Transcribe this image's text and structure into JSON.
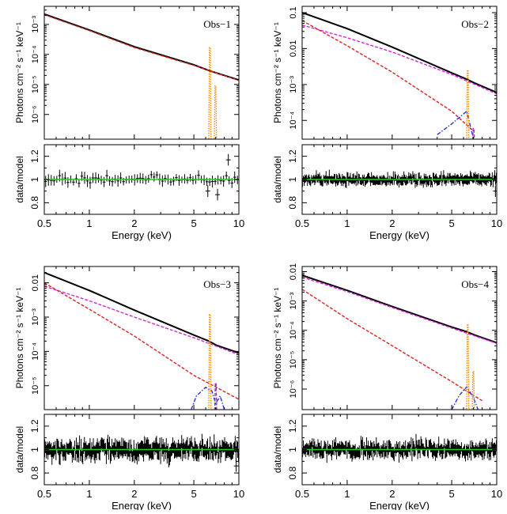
{
  "chart_data": [
    {
      "type": "line",
      "title": "Obs−1",
      "xlabel": "Energy (keV)",
      "ylabel_top": "Photons cm⁻² s⁻¹ keV⁻¹",
      "ylabel_bottom": "data/model",
      "xscale": "log",
      "xlim": [
        0.5,
        10
      ],
      "ylim_top": [
        1.5e-07,
        0.004
      ],
      "yscale_top": "log",
      "ylim_bottom": [
        0.7,
        1.3
      ],
      "xticks": [
        "0.5",
        "1",
        "2",
        "5",
        "10"
      ],
      "yticks_top": [
        "10⁻⁷",
        "10⁻⁶",
        "10⁻⁵",
        "10⁻⁴",
        "10⁻³"
      ],
      "yticks_bottom": [
        "0.8",
        "1",
        "1.2"
      ],
      "series": [
        {
          "role": "total",
          "color": "#000000",
          "style": "solid",
          "points": [
            [
              0.5,
              0.0022
            ],
            [
              1,
              0.00065
            ],
            [
              2,
              0.00018
            ],
            [
              5,
              4.5e-05
            ],
            [
              6.3,
              2.9e-05
            ],
            [
              7.1,
              2.4e-05
            ],
            [
              10,
              1.4e-05
            ]
          ]
        },
        {
          "role": "continuum",
          "color": "#dd2222",
          "style": "dashed",
          "points": [
            [
              0.5,
              0.0021
            ],
            [
              1,
              0.00062
            ],
            [
              2,
              0.00017
            ],
            [
              5,
              4.3e-05
            ],
            [
              10,
              1.35e-05
            ]
          ]
        },
        {
          "role": "line",
          "color": "#ee8800",
          "style": "dotted",
          "center": 6.4,
          "peak": 0.00017
        },
        {
          "role": "line",
          "color": "#ee8800",
          "style": "dotted",
          "center": 6.97,
          "peak": 9e-06
        }
      ],
      "ratio_scatter": 0.04,
      "ratio_points": 70,
      "outliers": [
        [
          8.5,
          1.17
        ],
        [
          6.2,
          0.9
        ],
        [
          7.2,
          0.87
        ]
      ]
    },
    {
      "type": "line",
      "title": "Obs−2",
      "xlabel": "Energy (keV)",
      "ylabel_top": "Photons cm⁻² s⁻¹ keV⁻¹",
      "ylabel_bottom": "data/model",
      "xscale": "log",
      "xlim": [
        0.5,
        10
      ],
      "ylim_top": [
        3e-05,
        0.15
      ],
      "yscale_top": "log",
      "ylim_bottom": [
        0.7,
        1.3
      ],
      "xticks": [
        "0.5",
        "1",
        "2",
        "5",
        "10"
      ],
      "yticks_top": [
        "10⁻⁴",
        "10⁻³",
        "0.01",
        "0.1"
      ],
      "yticks_bottom": [
        "0.8",
        "1",
        "1.2"
      ],
      "series": [
        {
          "role": "total",
          "color": "#000000",
          "style": "solid",
          "points": [
            [
              0.5,
              0.1
            ],
            [
              1,
              0.036
            ],
            [
              2,
              0.011
            ],
            [
              5,
              0.0021
            ],
            [
              6.3,
              0.0014
            ],
            [
              7.1,
              0.0011
            ],
            [
              10,
              0.0006
            ]
          ]
        },
        {
          "role": "power-law",
          "color": "#dd22dd",
          "style": "dashed",
          "points": [
            [
              0.5,
              0.045
            ],
            [
              1,
              0.02
            ],
            [
              2,
              0.008
            ],
            [
              5,
              0.0019
            ],
            [
              10,
              0.00055
            ]
          ]
        },
        {
          "role": "soft",
          "color": "#dd2222",
          "style": "dashed",
          "points": [
            [
              0.5,
              0.06
            ],
            [
              1,
              0.012
            ],
            [
              2,
              0.0022
            ],
            [
              5,
              0.00018
            ],
            [
              7,
              5e-05
            ]
          ]
        },
        {
          "role": "reflection",
          "color": "#2233dd",
          "style": "dashdot",
          "points": [
            [
              4.0,
              4e-05
            ],
            [
              5,
              8e-05
            ],
            [
              6.3,
              0.00018
            ],
            [
              7.0,
              3e-05
            ]
          ]
        },
        {
          "role": "line",
          "color": "#ee8800",
          "style": "dotted",
          "center": 6.4,
          "peak": 0.0025
        },
        {
          "role": "line",
          "color": "#9933cc",
          "style": "dashed",
          "center": 7.0,
          "peak": 6e-05
        }
      ],
      "ratio_scatter": 0.035,
      "ratio_points": 240,
      "outliers": [
        [
          9.8,
          0.9
        ]
      ]
    },
    {
      "type": "line",
      "title": "Obs−3",
      "xlabel": "Energy (keV)",
      "ylabel_top": "Photons cm⁻² s⁻¹ keV⁻¹",
      "ylabel_bottom": "data/model",
      "xscale": "log",
      "xlim": [
        0.5,
        10
      ],
      "ylim_top": [
        2e-06,
        0.03
      ],
      "yscale_top": "log",
      "ylim_bottom": [
        0.7,
        1.3
      ],
      "xticks": [
        "0.5",
        "1",
        "2",
        "5",
        "10"
      ],
      "yticks_top": [
        "10⁻⁵",
        "10⁻⁴",
        "10⁻³",
        "0.01"
      ],
      "yticks_bottom": [
        "0.8",
        "1",
        "1.2"
      ],
      "series": [
        {
          "role": "total",
          "color": "#000000",
          "style": "solid",
          "points": [
            [
              0.5,
              0.02
            ],
            [
              1,
              0.006
            ],
            [
              2,
              0.0016
            ],
            [
              5,
              0.0003
            ],
            [
              6.3,
              0.0002
            ],
            [
              7.1,
              0.00015
            ],
            [
              10,
              9e-05
            ]
          ]
        },
        {
          "role": "power-law",
          "color": "#dd22dd",
          "style": "dashed",
          "points": [
            [
              0.5,
              0.008
            ],
            [
              1,
              0.003
            ],
            [
              2,
              0.001
            ],
            [
              5,
              0.00025
            ],
            [
              10,
              8e-05
            ]
          ]
        },
        {
          "role": "soft",
          "color": "#dd2222",
          "style": "dashed",
          "points": [
            [
              0.5,
              0.01
            ],
            [
              1,
              0.0017
            ],
            [
              2,
              0.00028
            ],
            [
              5,
              2e-05
            ],
            [
              10,
              4e-06
            ]
          ]
        },
        {
          "role": "reflection",
          "color": "#2233dd",
          "style": "dashdot",
          "points": [
            [
              4.8,
              2e-06
            ],
            [
              5.2,
              5e-06
            ],
            [
              6.0,
              9e-06
            ],
            [
              6.6,
              7e-06
            ],
            [
              7.0,
              3e-06
            ],
            [
              7.5,
              5e-06
            ],
            [
              8.0,
              2e-06
            ]
          ]
        },
        {
          "role": "line",
          "color": "#ee8800",
          "style": "dotted",
          "center": 6.4,
          "peak": 0.0012
        },
        {
          "role": "line",
          "color": "#9933cc",
          "style": "dashed",
          "center": 7.0,
          "peak": 1.2e-05
        }
      ],
      "ratio_scatter": 0.06,
      "ratio_points": 240,
      "outliers": [
        [
          9.6,
          0.86
        ]
      ]
    },
    {
      "type": "line",
      "title": "Obs−4",
      "xlabel": "Energy (keV)",
      "ylabel_top": "Photons cm⁻² s⁻¹ keV⁻¹",
      "ylabel_bottom": "data/model",
      "xscale": "log",
      "xlim": [
        0.5,
        10
      ],
      "ylim_top": [
        2e-07,
        0.015
      ],
      "yscale_top": "log",
      "ylim_bottom": [
        0.7,
        1.3
      ],
      "xticks": [
        "0.5",
        "1",
        "2",
        "5",
        "10"
      ],
      "yticks_top": [
        "10⁻⁶",
        "10⁻⁵",
        "10⁻⁴",
        "10⁻³",
        "0.01"
      ],
      "yticks_bottom": [
        "0.8",
        "1",
        "1.2"
      ],
      "series": [
        {
          "role": "total",
          "color": "#000000",
          "style": "solid",
          "points": [
            [
              0.5,
              0.0075
            ],
            [
              1,
              0.0023
            ],
            [
              2,
              0.00065
            ],
            [
              5,
              0.00013
            ],
            [
              6.3,
              9e-05
            ],
            [
              7.1,
              7e-05
            ],
            [
              10,
              3.8e-05
            ]
          ]
        },
        {
          "role": "power-law",
          "color": "#dd22dd",
          "style": "dashed",
          "points": [
            [
              0.5,
              0.0065
            ],
            [
              1,
              0.0021
            ],
            [
              2,
              0.0006
            ],
            [
              5,
              0.00012
            ],
            [
              10,
              3.6e-05
            ]
          ]
        },
        {
          "role": "soft",
          "color": "#dd2222",
          "style": "dashed",
          "points": [
            [
              0.5,
              0.0025
            ],
            [
              1,
              0.00025
            ],
            [
              2,
              3e-05
            ],
            [
              5,
              1.8e-06
            ],
            [
              8,
              4e-07
            ]
          ]
        },
        {
          "role": "reflection",
          "color": "#2233dd",
          "style": "dashdot",
          "points": [
            [
              5.0,
              2e-07
            ],
            [
              5.6,
              6e-07
            ],
            [
              6.3,
              1.2e-06
            ],
            [
              7.0,
              5e-07
            ],
            [
              7.5,
              2e-07
            ]
          ]
        },
        {
          "role": "line",
          "color": "#ee8800",
          "style": "dotted",
          "center": 6.4,
          "peak": 0.00016
        },
        {
          "role": "line",
          "color": "#ee8800",
          "style": "dotted",
          "center": 6.97,
          "peak": 4e-06
        }
      ],
      "ratio_scatter": 0.05,
      "ratio_points": 240,
      "outliers": []
    }
  ],
  "colors": {
    "model_unity": "#22cc22",
    "data": "#000000"
  }
}
